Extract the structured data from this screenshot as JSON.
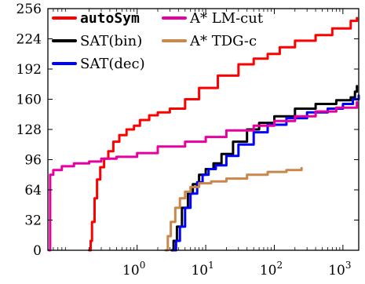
{
  "chart_data": {
    "type": "line",
    "title": "",
    "xlabel": "",
    "ylabel": "",
    "x_scale": "log",
    "xlim": [
      0.05,
      1700
    ],
    "ylim": [
      0,
      256
    ],
    "x_ticks": [
      {
        "value": 1,
        "base": "10",
        "exp": "0"
      },
      {
        "value": 10,
        "base": "10",
        "exp": "1"
      },
      {
        "value": 100,
        "base": "10",
        "exp": "2"
      },
      {
        "value": 1000,
        "base": "10",
        "exp": "3"
      }
    ],
    "y_ticks": [
      "0",
      "32",
      "64",
      "96",
      "128",
      "160",
      "192",
      "224",
      "256"
    ],
    "grid": false,
    "legend_position": "top-left",
    "series": [
      {
        "name": "autoSym",
        "color": "#ff0000",
        "mono": true,
        "points": [
          [
            0.2,
            0
          ],
          [
            0.21,
            10
          ],
          [
            0.22,
            30
          ],
          [
            0.24,
            55
          ],
          [
            0.26,
            75
          ],
          [
            0.29,
            88
          ],
          [
            0.33,
            97
          ],
          [
            0.38,
            105
          ],
          [
            0.45,
            115
          ],
          [
            0.55,
            122
          ],
          [
            0.7,
            128
          ],
          [
            0.9,
            132
          ],
          [
            1.1,
            138
          ],
          [
            1.5,
            143
          ],
          [
            2,
            146
          ],
          [
            3,
            150
          ],
          [
            5,
            160
          ],
          [
            8,
            172
          ],
          [
            15,
            185
          ],
          [
            30,
            197
          ],
          [
            50,
            203
          ],
          [
            80,
            208
          ],
          [
            120,
            215
          ],
          [
            200,
            222
          ],
          [
            400,
            228
          ],
          [
            700,
            235
          ],
          [
            1300,
            243
          ],
          [
            1600,
            246
          ]
        ]
      },
      {
        "name": "SAT(bin)",
        "color": "#000000",
        "mono": false,
        "points": [
          [
            3.2,
            0
          ],
          [
            3.4,
            10
          ],
          [
            3.8,
            25
          ],
          [
            4.5,
            45
          ],
          [
            5.5,
            60
          ],
          [
            6.5,
            70
          ],
          [
            8,
            80
          ],
          [
            10,
            86
          ],
          [
            13,
            92
          ],
          [
            17,
            102
          ],
          [
            25,
            115
          ],
          [
            40,
            128
          ],
          [
            60,
            135
          ],
          [
            100,
            142
          ],
          [
            200,
            150
          ],
          [
            400,
            155
          ],
          [
            800,
            159
          ],
          [
            1300,
            162
          ],
          [
            1500,
            168
          ],
          [
            1600,
            174
          ]
        ]
      },
      {
        "name": "SAT(dec)",
        "color": "#0000ff",
        "mono": false,
        "points": [
          [
            3.4,
            0
          ],
          [
            3.7,
            10
          ],
          [
            4.2,
            25
          ],
          [
            5,
            45
          ],
          [
            6,
            60
          ],
          [
            7.5,
            72
          ],
          [
            9,
            80
          ],
          [
            11,
            86
          ],
          [
            14,
            90
          ],
          [
            20,
            100
          ],
          [
            30,
            112
          ],
          [
            50,
            125
          ],
          [
            80,
            133
          ],
          [
            150,
            140
          ],
          [
            300,
            146
          ],
          [
            600,
            150
          ],
          [
            1000,
            155
          ],
          [
            1400,
            160
          ],
          [
            1700,
            164
          ]
        ]
      },
      {
        "name": "A* LM-cut",
        "color": "#e6009e",
        "mono": false,
        "points": [
          [
            0.052,
            0
          ],
          [
            0.054,
            80
          ],
          [
            0.06,
            85
          ],
          [
            0.08,
            89
          ],
          [
            0.12,
            92
          ],
          [
            0.2,
            94
          ],
          [
            0.3,
            97
          ],
          [
            0.5,
            99
          ],
          [
            1,
            103
          ],
          [
            2,
            110
          ],
          [
            5,
            115
          ],
          [
            10,
            120
          ],
          [
            20,
            127
          ],
          [
            50,
            132
          ],
          [
            100,
            137
          ],
          [
            200,
            142
          ],
          [
            400,
            147
          ],
          [
            800,
            151
          ],
          [
            1600,
            157
          ]
        ]
      },
      {
        "name": "A* TDG-c",
        "color": "#c8874b",
        "mono": false,
        "points": [
          [
            2.6,
            0
          ],
          [
            2.8,
            15
          ],
          [
            3.1,
            30
          ],
          [
            3.6,
            45
          ],
          [
            4.2,
            55
          ],
          [
            5,
            62
          ],
          [
            6,
            67
          ],
          [
            8,
            71
          ],
          [
            12,
            73
          ],
          [
            20,
            76
          ],
          [
            40,
            80
          ],
          [
            80,
            83
          ],
          [
            150,
            85
          ],
          [
            250,
            87
          ]
        ]
      }
    ]
  }
}
